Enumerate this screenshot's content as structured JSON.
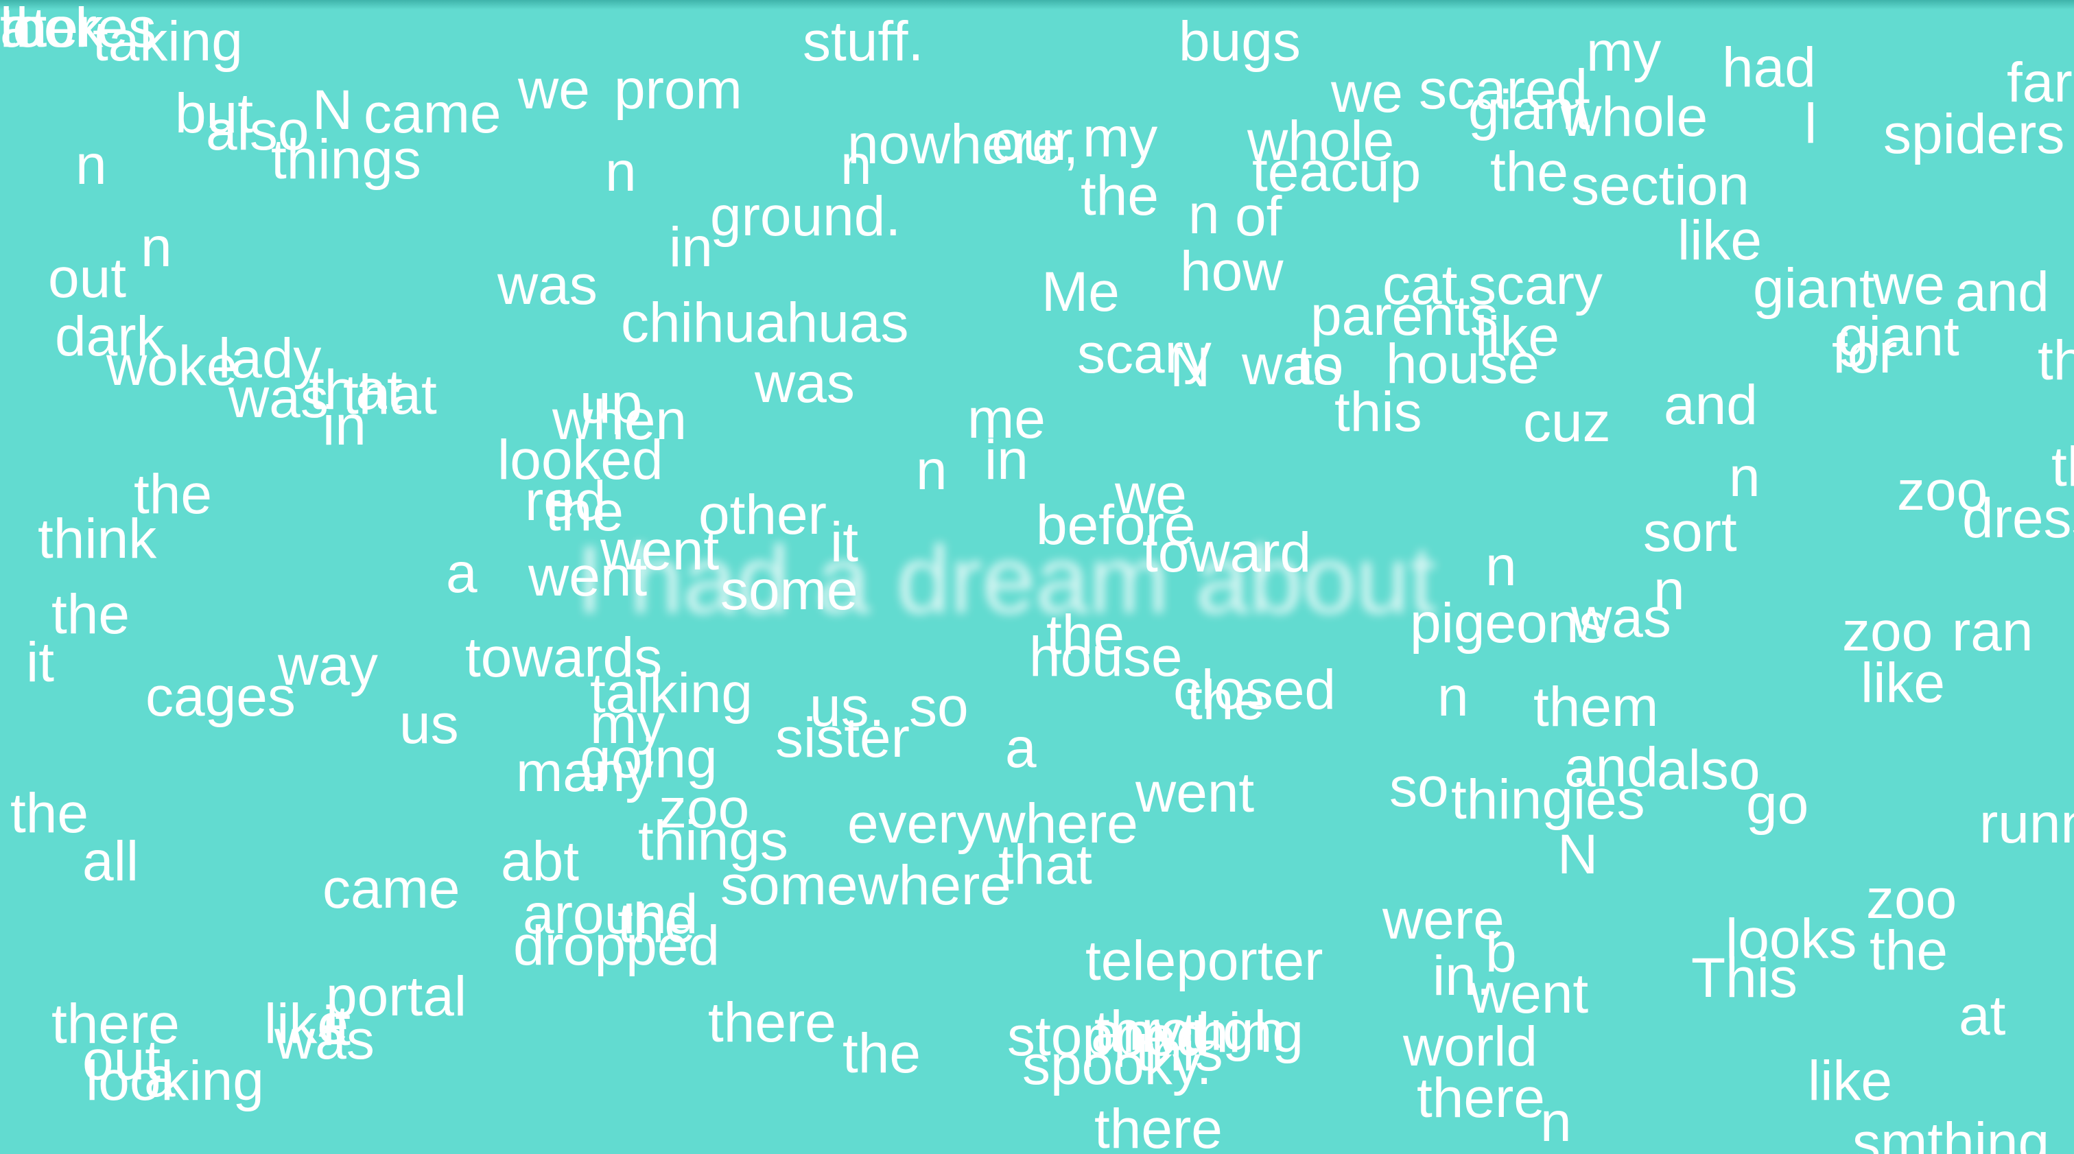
{
  "headline": "I had a dream about",
  "words": [
    "taking",
    "stuff.",
    "bugs",
    "my",
    "had",
    "far",
    "but",
    "also",
    "N",
    "came",
    "we",
    "prom",
    "we",
    "scared",
    "giant",
    "whole",
    "l",
    "spiders",
    "n",
    "things",
    "n",
    "n",
    "nowhere,",
    "our",
    "my",
    "whole",
    "teacup",
    "the",
    "section",
    "the",
    "n",
    "of",
    "ground.",
    "in",
    "like",
    "out",
    "n",
    "was",
    "how",
    "chihuahuas",
    "Me",
    "cat",
    "scary",
    "parents",
    "giant",
    "we",
    "and",
    "dark",
    "lady",
    "woke",
    "scary",
    "N",
    "was",
    "to",
    "house",
    "like",
    "that",
    "giant",
    "for",
    "the",
    "was",
    "that",
    "in",
    "up",
    "when",
    "was",
    "me",
    "this",
    "cuz",
    "and",
    "looked",
    "red",
    "the",
    "n",
    "in",
    "n",
    "the",
    "zoo",
    "th",
    "dress",
    "think",
    "we",
    "other",
    "went",
    "it",
    "before",
    "toward",
    "sort",
    "a",
    "went",
    "some",
    "n",
    "was",
    "n",
    "the",
    "pigeons",
    "zoo",
    "ran",
    "it",
    "cages",
    "way",
    "towards",
    "talking",
    "the",
    "house",
    "closed",
    "the",
    "n",
    "them",
    "like",
    "my",
    "us.",
    "so",
    "us",
    "going",
    "sister",
    "a",
    "many",
    "zoo",
    "went",
    "so",
    "thingies",
    "and",
    "also",
    "go",
    "the",
    "things",
    "everywhere",
    "running",
    "all",
    "came",
    "abt",
    "somewhere",
    "that",
    "N",
    "around",
    "the",
    "were",
    "zoo",
    "dropped",
    "teleporter",
    "b",
    "looks",
    "the",
    "This",
    "went",
    "in.",
    "portal",
    "it",
    "there",
    "like",
    "was",
    "out",
    "looking",
    "a",
    "through",
    "anything",
    "this",
    "there",
    "the",
    "stopped",
    "spooky.",
    "world",
    "at",
    "like",
    "there",
    "there",
    "n",
    "smthing",
    "theres",
    "at",
    "look",
    "n"
  ]
}
